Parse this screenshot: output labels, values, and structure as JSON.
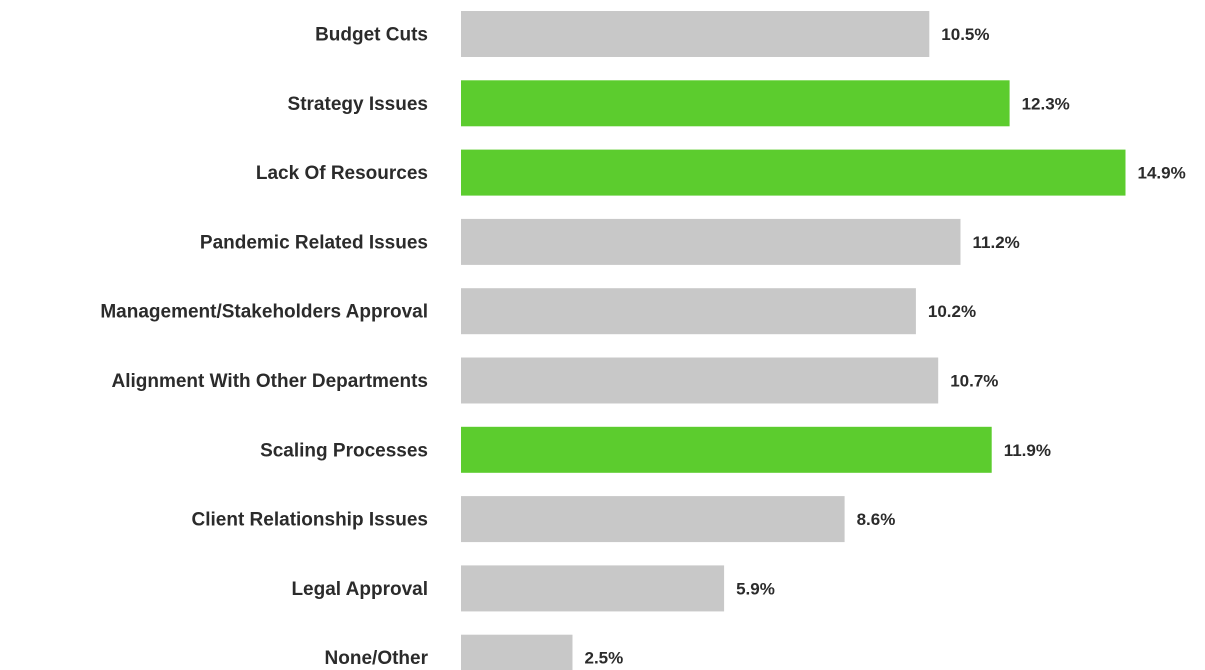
{
  "chart_data": {
    "type": "bar",
    "orientation": "horizontal",
    "title": "",
    "xlabel": "",
    "ylabel": "",
    "grid": false,
    "xlim": [
      0,
      15
    ],
    "categories": [
      "Budget Cuts",
      "Strategy Issues",
      "Lack Of Resources",
      "Pandemic Related Issues",
      "Management/Stakeholders Approval",
      "Alignment With Other Departments",
      "Scaling Processes",
      "Client Relationship Issues",
      "Legal Approval",
      "None/Other"
    ],
    "values": [
      10.5,
      12.3,
      14.9,
      11.2,
      10.2,
      10.7,
      11.9,
      8.6,
      5.9,
      2.5
    ],
    "value_labels": [
      "10.5%",
      "12.3%",
      "14.9%",
      "11.2%",
      "10.2%",
      "10.7%",
      "11.9%",
      "8.6%",
      "5.9%",
      "2.5%"
    ],
    "highlighted": [
      false,
      true,
      true,
      false,
      false,
      false,
      true,
      false,
      false,
      false
    ],
    "colors": {
      "default": "#c8c8c8",
      "highlight": "#5ccc2e",
      "text": "#2b2b2b"
    }
  }
}
